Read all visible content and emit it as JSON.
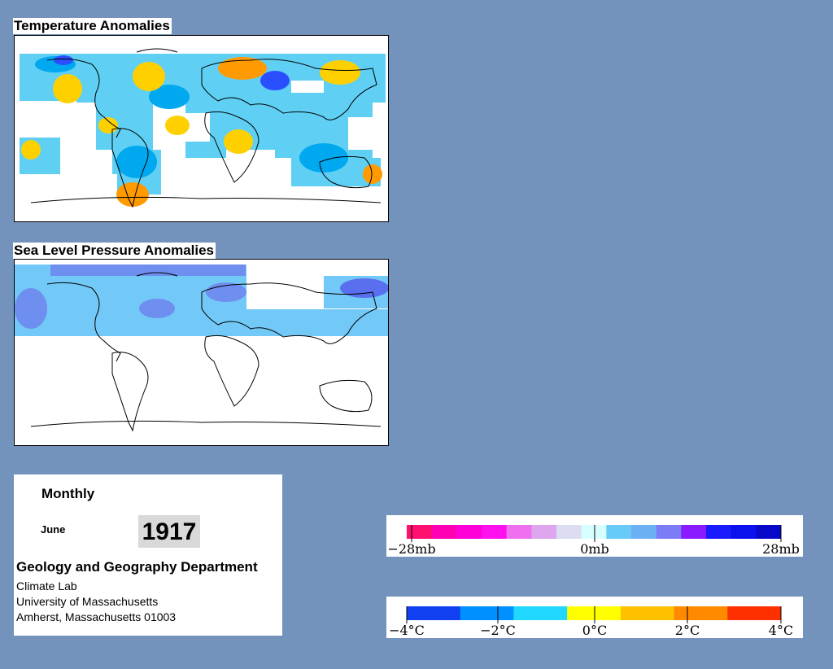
{
  "maps": {
    "temperature": {
      "title": "Temperature Anomalies",
      "land": "land-outline",
      "colors": {
        "cold": "#00a8f0",
        "cool": "#5fd0f4",
        "cyan": "#52e6f8",
        "warm": "#ffd000",
        "hot": "#ff9a00",
        "deep": "#2a4fff"
      }
    },
    "pressure": {
      "title": "Sea Level Pressure Anomalies",
      "colors": {
        "light": "#72c8f6",
        "mid": "#6f8ff0",
        "strong": "#5a6ef0"
      }
    }
  },
  "info": {
    "mode": "Monthly",
    "month": "June",
    "year": "1917",
    "department": "Geology and Geography Department",
    "lines": [
      "Climate Lab",
      "University of Massachusetts",
      "Amherst, Massachusetts 01003"
    ]
  },
  "legends": {
    "pressure": {
      "ticks": [
        "−28mb",
        "0mb",
        "28mb"
      ],
      "colors": [
        "#ff0f6f",
        "#ff00b4",
        "#ff00d9",
        "#ff10ee",
        "#ee70ee",
        "#dda6ee",
        "#dcdcf2",
        "#d8ffff",
        "#68caf8",
        "#6cb0f4",
        "#7c7cf6",
        "#8a1aff",
        "#1a1aff",
        "#0a10ee",
        "#0a08c8"
      ]
    },
    "temperature": {
      "ticks": [
        "−4°C",
        "−2°C",
        "0°C",
        "2°C",
        "4°C"
      ],
      "colors": [
        "#1040f0",
        "#0090ff",
        "#20d8ff",
        "#ffff00",
        "#ffc000",
        "#ff8a00",
        "#ff3000"
      ]
    }
  }
}
